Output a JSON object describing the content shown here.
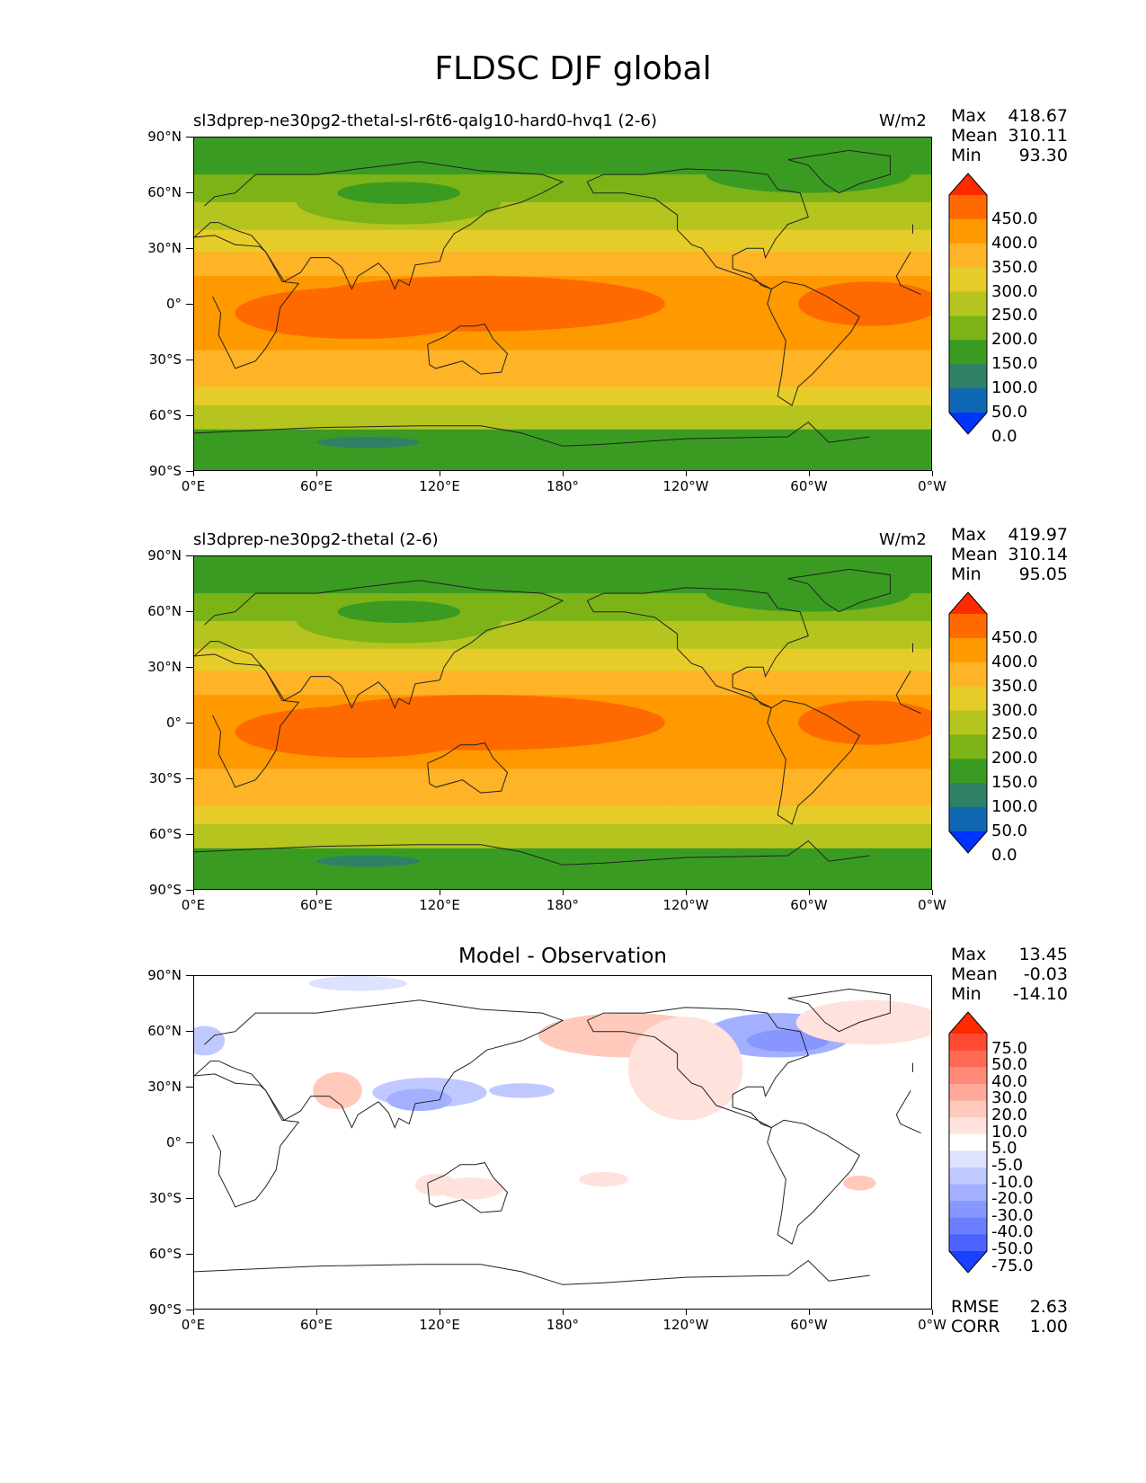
{
  "figure_title": "FLDSC DJF global",
  "y_ticks": [
    "90°N",
    "60°N",
    "30°N",
    "0°",
    "30°S",
    "60°S",
    "90°S"
  ],
  "x_ticks": [
    "0°E",
    "60°E",
    "120°E",
    "180°",
    "120°W",
    "60°W",
    "0°W"
  ],
  "abs_colorbar": {
    "labels": [
      "450.0",
      "400.0",
      "350.0",
      "300.0",
      "250.0",
      "200.0",
      "150.0",
      "100.0",
      "50.0",
      "0.0"
    ],
    "colors": [
      "#ff2a00",
      "#ff6a00",
      "#ff9900",
      "#ffb326",
      "#e6cc28",
      "#b5c41e",
      "#7cb417",
      "#3a9b22",
      "#2e8066",
      "#0f66b3",
      "#0033ff"
    ]
  },
  "diff_colorbar": {
    "labels": [
      "75.0",
      "50.0",
      "40.0",
      "30.0",
      "20.0",
      "10.0",
      "5.0",
      "-5.0",
      "-10.0",
      "-20.0",
      "-30.0",
      "-40.0",
      "-50.0",
      "-75.0"
    ],
    "colors": [
      "#ff2a00",
      "#ff4a33",
      "#ff6a55",
      "#ff8a77",
      "#ffa99a",
      "#ffc9bc",
      "#ffe2dc",
      "#ffffff",
      "#dde2ff",
      "#c0c9ff",
      "#a3b0ff",
      "#8797ff",
      "#6a7eff",
      "#4d63ff",
      "#1a40ff"
    ]
  },
  "panels": [
    {
      "title": "sl3dprep-ne30pg2-thetal-sl-r6t6-qalg10-hard0-hvq1 (2-6)",
      "units": "W/m2",
      "stats": {
        "max_label": "Max",
        "max": "418.67",
        "mean_label": "Mean",
        "mean": "310.11",
        "min_label": "Min",
        "min": "93.30"
      }
    },
    {
      "title": "sl3dprep-ne30pg2-thetal (2-6)",
      "units": "W/m2",
      "stats": {
        "max_label": "Max",
        "max": "419.97",
        "mean_label": "Mean",
        "mean": "310.14",
        "min_label": "Min",
        "min": "95.05"
      }
    },
    {
      "title": "Model - Observation",
      "units": "",
      "stats": {
        "max_label": "Max",
        "max": "13.45",
        "mean_label": "Mean",
        "mean": "-0.03",
        "min_label": "Min",
        "min": "-14.10"
      },
      "extra": {
        "rmse_label": "RMSE",
        "rmse": "2.63",
        "corr_label": "CORR",
        "corr": "1.00"
      }
    }
  ]
}
